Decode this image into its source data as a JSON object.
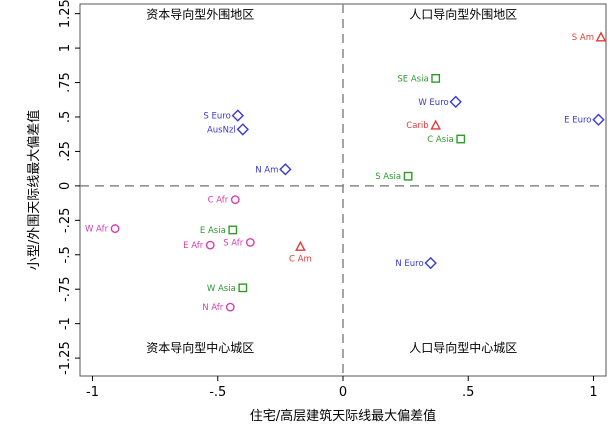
{
  "chart_data": {
    "type": "scatter",
    "xlabel": "住宅/高层建筑天际线最大偏差值",
    "ylabel": "小型/外围天际线最大偏差值",
    "xlim": [
      -1.05,
      1.05
    ],
    "ylim": [
      -1.38,
      1.32
    ],
    "xticks": [
      {
        "v": -1,
        "label": "-1"
      },
      {
        "v": -0.5,
        "label": "-.5"
      },
      {
        "v": 0,
        "label": "0"
      },
      {
        "v": 0.5,
        "label": ".5"
      },
      {
        "v": 1,
        "label": "1"
      }
    ],
    "yticks": [
      {
        "v": 1.25,
        "label": "1.25"
      },
      {
        "v": 1,
        "label": "1"
      },
      {
        "v": 0.75,
        "label": ".75"
      },
      {
        "v": 0.5,
        "label": ".5"
      },
      {
        "v": 0.25,
        "label": ".25"
      },
      {
        "v": 0,
        "label": "0"
      },
      {
        "v": -0.25,
        "label": "-.25"
      },
      {
        "v": -0.5,
        "label": "-.5"
      },
      {
        "v": -0.75,
        "label": "-.75"
      },
      {
        "v": -1,
        "label": "-1"
      },
      {
        "v": -1.25,
        "label": "-1.25"
      }
    ],
    "reference_lines": {
      "x": 0,
      "y": 0,
      "style": "dashed"
    },
    "quadrant_labels": {
      "top_left": "资本导向型外围地区",
      "top_right": "人口导向型外围地区",
      "bottom_left": "资本导向型中心城区",
      "bottom_right": "人口导向型中心城区"
    },
    "series": [
      {
        "marker": "diamond",
        "color": "#3a3ad0",
        "points": [
          {
            "label": "S Euro",
            "x": -0.42,
            "y": 0.51,
            "label_side": "left"
          },
          {
            "label": "AusNzl",
            "x": -0.4,
            "y": 0.41,
            "label_side": "left"
          },
          {
            "label": "N Am",
            "x": -0.23,
            "y": 0.12,
            "label_side": "left"
          },
          {
            "label": "W Euro",
            "x": 0.45,
            "y": 0.61,
            "label_side": "left"
          },
          {
            "label": "E Euro",
            "x": 1.02,
            "y": 0.48,
            "label_side": "left"
          },
          {
            "label": "N Euro",
            "x": 0.35,
            "y": -0.56,
            "label_side": "left"
          }
        ]
      },
      {
        "marker": "triangle",
        "color": "#e23b3b",
        "points": [
          {
            "label": "S Am",
            "x": 1.03,
            "y": 1.08,
            "label_side": "left"
          },
          {
            "label": "Carib",
            "x": 0.37,
            "y": 0.44,
            "label_side": "left"
          },
          {
            "label": "C Am",
            "x": -0.17,
            "y": -0.44,
            "label_side": "below"
          }
        ]
      },
      {
        "marker": "square",
        "color": "#2e9a2e",
        "points": [
          {
            "label": "SE Asia",
            "x": 0.37,
            "y": 0.78,
            "label_side": "left"
          },
          {
            "label": "C Asia",
            "x": 0.47,
            "y": 0.34,
            "label_side": "left"
          },
          {
            "label": "S Asia",
            "x": 0.26,
            "y": 0.07,
            "label_side": "left"
          },
          {
            "label": "E Asia",
            "x": -0.44,
            "y": -0.32,
            "label_side": "left"
          },
          {
            "label": "W Asia",
            "x": -0.4,
            "y": -0.74,
            "label_side": "left"
          }
        ]
      },
      {
        "marker": "circle",
        "color": "#d63fb0",
        "points": [
          {
            "label": "C Afr",
            "x": -0.43,
            "y": -0.1,
            "label_side": "left"
          },
          {
            "label": "W Afr",
            "x": -0.91,
            "y": -0.31,
            "label_side": "left"
          },
          {
            "label": "E Afr",
            "x": -0.53,
            "y": -0.43,
            "label_side": "left"
          },
          {
            "label": "S Afr",
            "x": -0.37,
            "y": -0.41,
            "label_side": "left"
          },
          {
            "label": "N Afr",
            "x": -0.45,
            "y": -0.88,
            "label_side": "left"
          }
        ]
      }
    ]
  }
}
